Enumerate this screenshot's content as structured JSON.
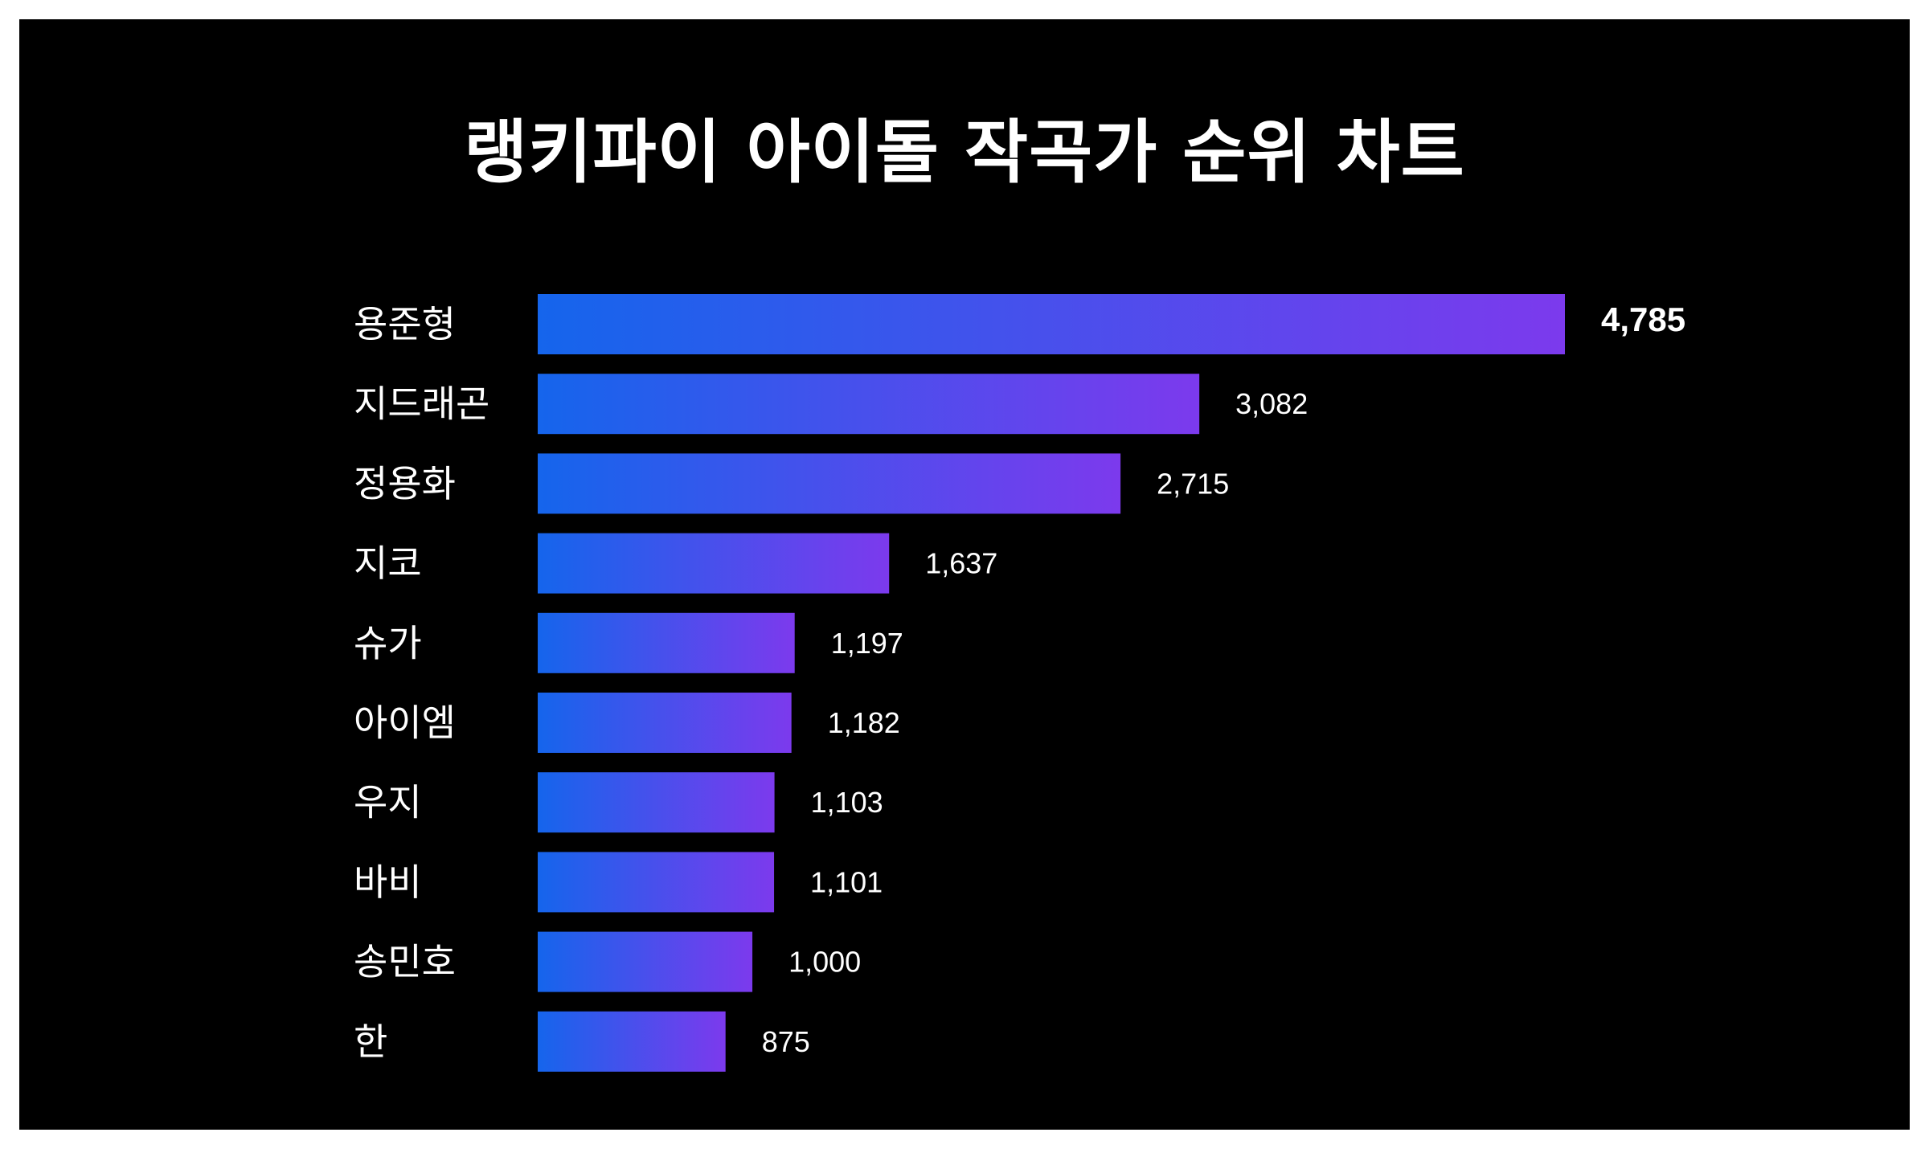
{
  "title": "랭키파이 아이돌 작곡가 순위 차트",
  "chart_data": {
    "type": "bar",
    "orientation": "horizontal",
    "title": "랭키파이 아이돌 작곡가 순위 차트",
    "categories": [
      "용준형",
      "지드래곤",
      "정용화",
      "지코",
      "슈가",
      "아이엠",
      "우지",
      "바비",
      "송민호",
      "한"
    ],
    "values": [
      4785,
      3082,
      2715,
      1637,
      1197,
      1182,
      1103,
      1101,
      1000,
      875
    ],
    "value_labels": [
      "4,785",
      "3,082",
      "2,715",
      "1,637",
      "1,197",
      "1,182",
      "1,103",
      "1,101",
      "1,000",
      "875"
    ],
    "xlabel": "",
    "ylabel": "",
    "xlim": [
      0,
      4785
    ],
    "grid": false,
    "legend": "none",
    "bar_gradient": [
      "#1565ec",
      "#7c3aed"
    ],
    "background": "#000000",
    "text_color": "#ffffff"
  }
}
